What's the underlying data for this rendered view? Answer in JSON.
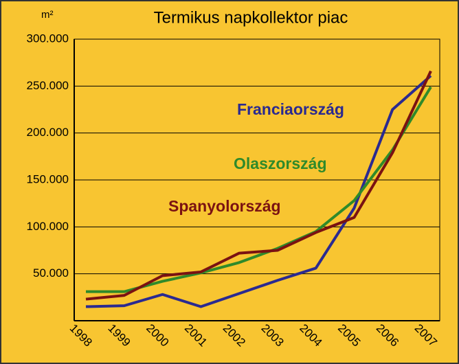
{
  "chart_data": {
    "type": "line",
    "title": "Termikus napkollektor piac",
    "y_label": "m²",
    "categories": [
      "1998",
      "1999",
      "2000",
      "2001",
      "2002",
      "2003",
      "2004",
      "2005",
      "2006",
      "2007"
    ],
    "series": [
      {
        "name": "Franciaország",
        "color": "#2b2a90",
        "values": [
          15000,
          16000,
          28000,
          15000,
          29000,
          43000,
          56000,
          120000,
          225000,
          261000
        ]
      },
      {
        "name": "Olaszország",
        "color": "#2f8a2a",
        "values": [
          31000,
          31000,
          42000,
          51000,
          62000,
          77000,
          95000,
          128000,
          182000,
          249000
        ]
      },
      {
        "name": "Spanyolország",
        "color": "#7a1212",
        "values": [
          23000,
          27000,
          48000,
          52000,
          72000,
          75000,
          94000,
          110000,
          179000,
          266000
        ]
      }
    ],
    "ylim": [
      0,
      300000
    ],
    "yticks": [
      {
        "value": 50000,
        "label": "50.000"
      },
      {
        "value": 100000,
        "label": "100.000"
      },
      {
        "value": 150000,
        "label": "150.000"
      },
      {
        "value": 200000,
        "label": "200.000"
      },
      {
        "value": 250000,
        "label": "250.000"
      },
      {
        "value": 300000,
        "label": "300.000"
      }
    ],
    "grid": true
  }
}
